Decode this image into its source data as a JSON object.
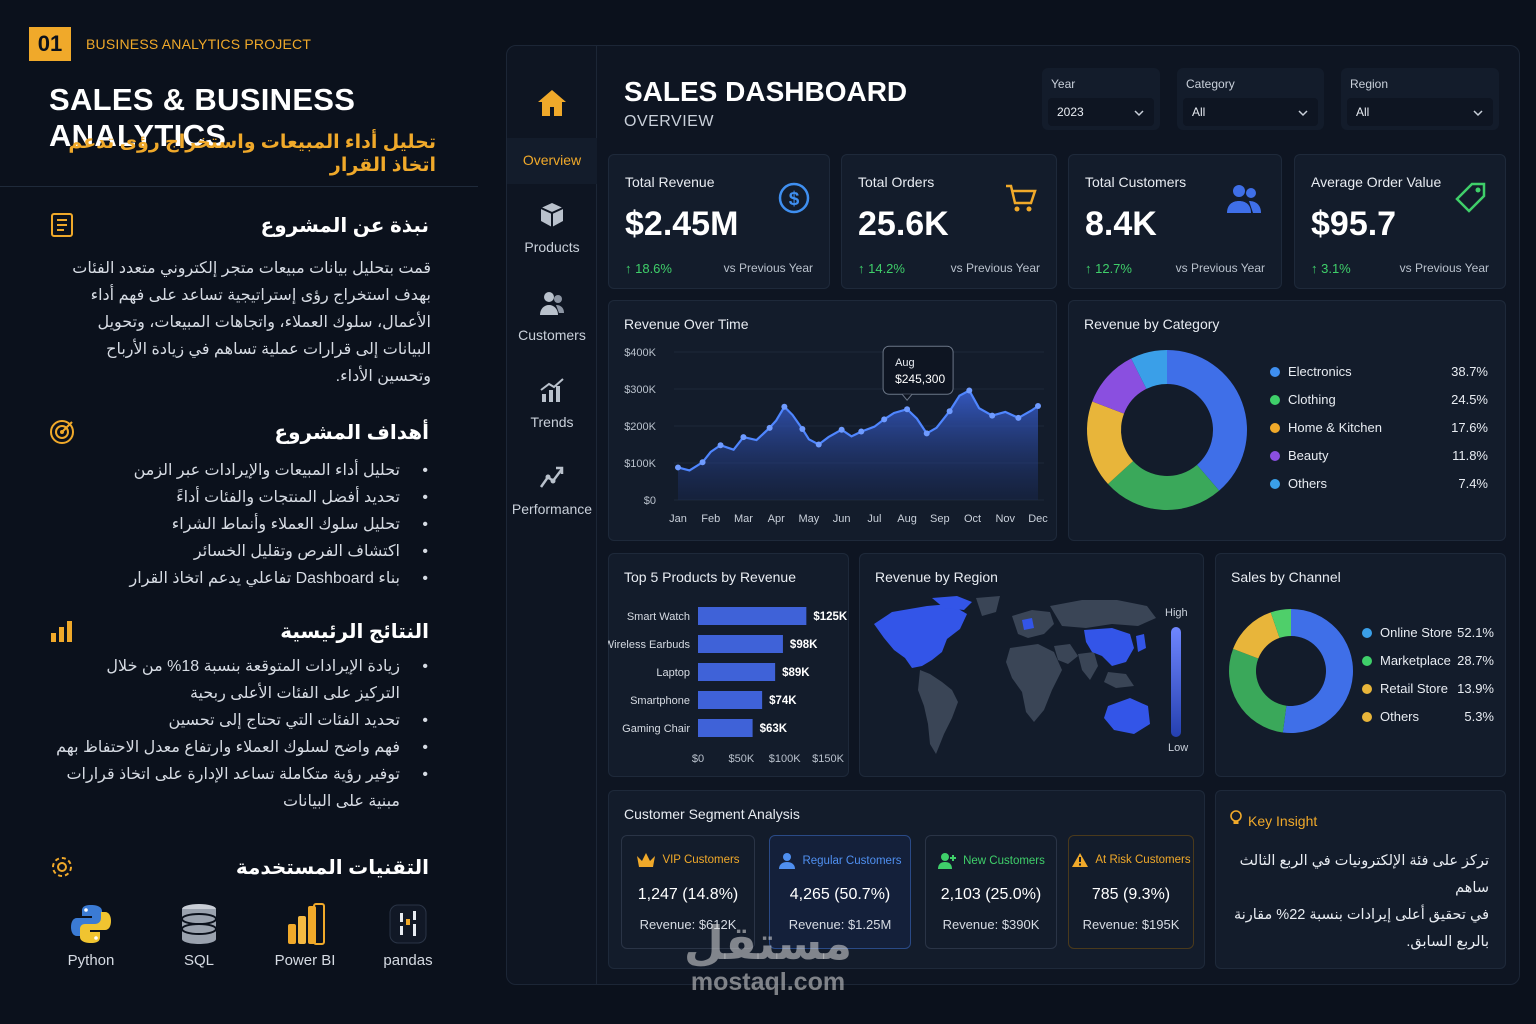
{
  "header": {
    "badge": "01",
    "project_label": "BUSINESS ANALYTICS PROJECT",
    "title": "SALES & BUSINESS ANALYTICS",
    "subtitle": "تحليل أداء المبيعات واستخراج رؤى تدعم اتخاذ القرار"
  },
  "about": {
    "heading": "نبذة عن المشروع",
    "lines": [
      "قمت بتحليل بيانات مبيعات متجر إلكتروني متعدد الفئات",
      "بهدف استخراج رؤى إستراتيجية تساعد على فهم أداء",
      "الأعمال، سلوك العملاء، واتجاهات المبيعات، وتحويل",
      "البيانات إلى قرارات عملية تساهم في زيادة الأرباح",
      "وتحسين الأداء."
    ]
  },
  "goals": {
    "heading": "أهداف المشروع",
    "items": [
      "تحليل أداء المبيعات والإيرادات عبر الزمن",
      "تحديد أفضل المنتجات والفئات أداءً",
      "تحليل سلوك العملاء وأنماط الشراء",
      "اكتشاف الفرص وتقليل الخسائر",
      "بناء Dashboard تفاعلي يدعم اتخاذ القرار"
    ]
  },
  "results": {
    "heading": "النتائج الرئيسية",
    "items": [
      "زيادة الإيرادات المتوقعة بنسبة 18% من خلال التركيز على الفئات الأعلى ربحية",
      "تحديد الفئات التي تحتاج إلى تحسين",
      "فهم واضح لسلوك العملاء وارتفاع معدل الاحتفاظ بهم",
      "توفير رؤية متكاملة تساعد الإدارة على اتخاذ قرارات مبنية على البيانات"
    ]
  },
  "tech": {
    "heading": "التقنيات المستخدمة",
    "items": [
      "Python",
      "SQL",
      "Power BI",
      "pandas"
    ]
  },
  "nav": [
    "Overview",
    "Products",
    "Customers",
    "Trends",
    "Performance"
  ],
  "dashboard": {
    "title": "SALES DASHBOARD",
    "subtitle": "OVERVIEW",
    "filters": [
      {
        "label": "Year",
        "value": "2023"
      },
      {
        "label": "Category",
        "value": "All"
      },
      {
        "label": "Region",
        "value": "All"
      }
    ],
    "kpis": [
      {
        "label": "Total Revenue",
        "value": "$2.45M",
        "delta": "↑ 18.6%",
        "compare": "vs Previous Year",
        "icon": "dollar-icon"
      },
      {
        "label": "Total Orders",
        "value": "25.6K",
        "delta": "↑ 14.2%",
        "compare": "vs Previous Year",
        "icon": "cart-icon"
      },
      {
        "label": "Total Customers",
        "value": "8.4K",
        "delta": "↑ 12.7%",
        "compare": "vs Previous Year",
        "icon": "users-icon"
      },
      {
        "label": "Average Order Value",
        "value": "$95.7",
        "delta": "↑ 3.1%",
        "compare": "vs Previous Year",
        "icon": "tag-icon"
      }
    ],
    "revenue_time": {
      "title": "Revenue Over Time",
      "tooltip_month": "Aug",
      "tooltip_value": "$245,300"
    },
    "revenue_category": {
      "title": "Revenue by Category"
    },
    "top_products": {
      "title": "Top 5 Products by Revenue"
    },
    "region": {
      "title": "Revenue by Region",
      "high": "High",
      "low": "Low"
    },
    "channel": {
      "title": "Sales by Channel"
    },
    "segments": {
      "title": "Customer Segment Analysis",
      "items": [
        {
          "name": "VIP Customers",
          "value": "1,247 (14.8%)",
          "revenue": "Revenue: $612K",
          "color": "#f0a92a"
        },
        {
          "name": "Regular Customers",
          "value": "4,265 (50.7%)",
          "revenue": "Revenue: $1.25M",
          "color": "#4f8ff0"
        },
        {
          "name": "New Customers",
          "value": "2,103 (25.0%)",
          "revenue": "Revenue: $390K",
          "color": "#3fcf6a"
        },
        {
          "name": "At Risk Customers",
          "value": "785 (9.3%)",
          "revenue": "Revenue: $195K",
          "color": "#f0a92a"
        }
      ]
    },
    "insight": {
      "title": "Key Insight",
      "lines": [
        "تركز على فئة الإلكترونيات في الربع الثالث ساهم",
        "في تحقيق أعلى إيرادات بنسبة 22% مقارنة",
        "بالربع السابق."
      ]
    }
  },
  "watermark": {
    "ar": "مستقل",
    "en": "mostaql.com"
  },
  "chart_data": [
    {
      "type": "area",
      "title": "Revenue Over Time",
      "x": [
        "Jan",
        "Feb",
        "Mar",
        "Apr",
        "May",
        "Jun",
        "Jul",
        "Aug",
        "Sep",
        "Oct",
        "Nov",
        "Dec"
      ],
      "y_ticks": [
        "$400K",
        "$300K",
        "$200K",
        "$100K",
        "$0"
      ],
      "ylim": [
        0,
        400000
      ],
      "points": [
        [
          0.0,
          88000
        ],
        [
          0.35,
          80000
        ],
        [
          0.75,
          102000
        ],
        [
          1.0,
          130000
        ],
        [
          1.3,
          148000
        ],
        [
          1.7,
          136000
        ],
        [
          2.0,
          170000
        ],
        [
          2.4,
          162000
        ],
        [
          2.8,
          195000
        ],
        [
          3.0,
          215000
        ],
        [
          3.25,
          252000
        ],
        [
          3.5,
          230000
        ],
        [
          3.8,
          192000
        ],
        [
          4.0,
          164000
        ],
        [
          4.3,
          150000
        ],
        [
          4.6,
          170000
        ],
        [
          5.0,
          190000
        ],
        [
          5.3,
          172000
        ],
        [
          5.6,
          185000
        ],
        [
          6.0,
          198000
        ],
        [
          6.3,
          218000
        ],
        [
          6.6,
          235000
        ],
        [
          7.0,
          245300
        ],
        [
          7.3,
          220000
        ],
        [
          7.6,
          180000
        ],
        [
          7.9,
          195000
        ],
        [
          8.3,
          240000
        ],
        [
          8.6,
          282000
        ],
        [
          8.9,
          296000
        ],
        [
          9.2,
          248000
        ],
        [
          9.6,
          228000
        ],
        [
          10.0,
          238000
        ],
        [
          10.4,
          222000
        ],
        [
          10.8,
          242000
        ],
        [
          11.0,
          254000
        ]
      ],
      "annotation": {
        "x": "Aug",
        "value": 245300
      }
    },
    {
      "type": "pie",
      "title": "Revenue by Category",
      "labels": [
        "Electronics",
        "Clothing",
        "Home & Kitchen",
        "Beauty",
        "Others"
      ],
      "values": [
        38.7,
        24.5,
        17.6,
        11.8,
        7.4
      ],
      "value_labels": [
        "38.7%",
        "24.5%",
        "17.6%",
        "11.8%",
        "7.4%"
      ],
      "colors": [
        "#3f6fe8",
        "#3aa85a",
        "#e8b53a",
        "#8a4fe0",
        "#3a9fe8"
      ],
      "legend": "right"
    },
    {
      "type": "bar",
      "title": "Top 5 Products by Revenue",
      "orientation": "horizontal",
      "categories": [
        "Smart Watch",
        "Wireless Earbuds",
        "Laptop",
        "Smartphone",
        "Gaming Chair"
      ],
      "values": [
        125,
        98,
        89,
        74,
        63
      ],
      "value_labels": [
        "$125K",
        "$98K",
        "$89K",
        "$74K",
        "$63K"
      ],
      "x_ticks": [
        "$0",
        "$50K",
        "$100K",
        "$150K"
      ],
      "xlim": [
        0,
        150
      ]
    },
    {
      "type": "pie",
      "title": "Sales by Channel",
      "labels": [
        "Online Store",
        "Marketplace",
        "Retail Store",
        "Others"
      ],
      "values": [
        52.1,
        28.7,
        13.9,
        5.3
      ],
      "value_labels": [
        "52.1%",
        "28.7%",
        "13.9%",
        "5.3%"
      ],
      "colors": [
        "#3f6fe8",
        "#3aa85a",
        "#e8b53a",
        "#3aa85a"
      ],
      "legend_colors": [
        "#3a9fe8",
        "#3fcf6a",
        "#e8b53a",
        "#e8b53a"
      ],
      "legend": "right"
    }
  ]
}
